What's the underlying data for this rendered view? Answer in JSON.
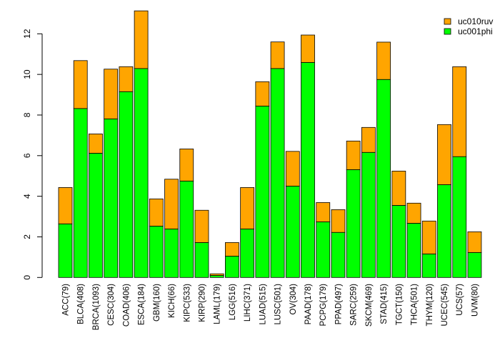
{
  "chart_data": {
    "type": "bar",
    "stacked": true,
    "title": "",
    "xlabel": "",
    "ylabel": "",
    "ylim": [
      0,
      13.2
    ],
    "yticks": [
      0,
      2,
      4,
      6,
      8,
      10,
      12
    ],
    "grid": false,
    "legend_position": "top-right",
    "categories": [
      "ACC(79)",
      "BLCA(408)",
      "BRCA(1093)",
      "CESC(304)",
      "COAD(406)",
      "ESCA(184)",
      "GBM(160)",
      "KICH(66)",
      "KIPC(533)",
      "KIRP(290)",
      "LAML(179)",
      "LGG(516)",
      "LIHC(371)",
      "LUAD(515)",
      "LUSC(501)",
      "OV(304)",
      "PAAD(178)",
      "PCPG(179)",
      "PPAD(497)",
      "SARC(259)",
      "SKCM(469)",
      "STAD(415)",
      "TGCT(150)",
      "THCA(501)",
      "THYM(120)",
      "UCEC(545)",
      "UCS(57)",
      "UVM(80)"
    ],
    "series": [
      {
        "name": "uc001phi",
        "color": "#00ff00",
        "values": [
          2.64,
          8.32,
          6.12,
          7.81,
          9.15,
          10.29,
          2.53,
          2.39,
          4.75,
          1.72,
          0.1,
          1.05,
          2.39,
          8.44,
          10.29,
          4.5,
          10.59,
          2.74,
          2.22,
          5.31,
          6.16,
          9.75,
          3.55,
          2.67,
          1.16,
          4.57,
          5.95,
          1.23
        ]
      },
      {
        "name": "uc010ruv",
        "color": "#ffa500",
        "values": [
          1.79,
          2.36,
          0.95,
          2.45,
          1.23,
          2.84,
          1.34,
          2.45,
          1.58,
          1.59,
          0.08,
          0.67,
          2.04,
          1.2,
          1.31,
          1.71,
          1.35,
          0.95,
          1.12,
          1.41,
          1.23,
          1.84,
          1.69,
          0.99,
          1.62,
          2.96,
          4.43,
          1.02
        ]
      }
    ],
    "legend": [
      "uc010ruv",
      "uc001phi"
    ]
  }
}
